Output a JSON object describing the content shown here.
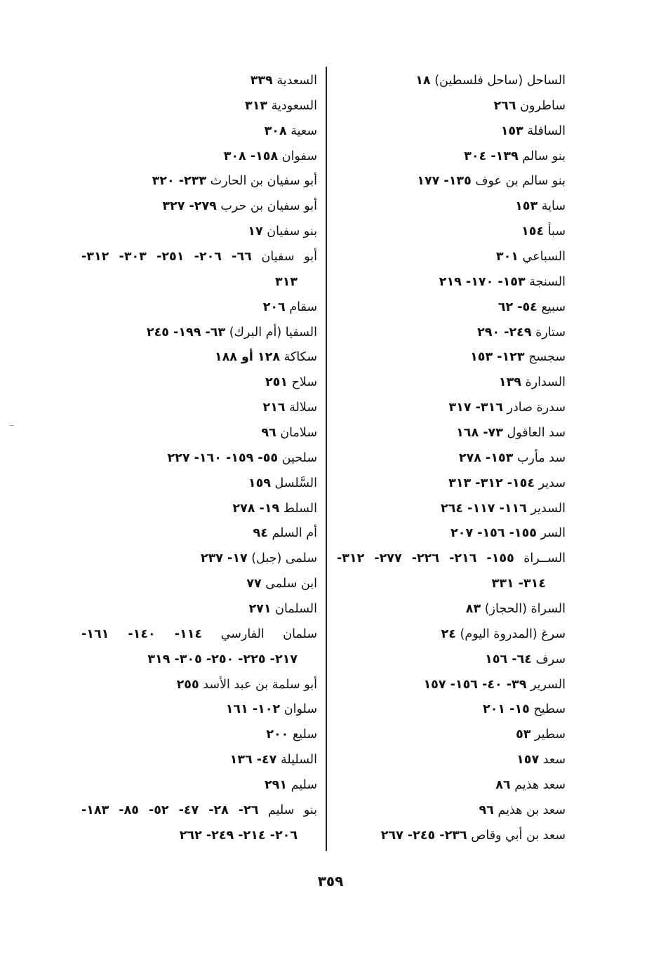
{
  "columns": {
    "right": [
      {
        "name": "الساحل (ساحل فلسطين)",
        "pages": "١٨"
      },
      {
        "name": "ساطرون",
        "pages": "٢٦٦"
      },
      {
        "name": "السافلة",
        "pages": "١٥٣"
      },
      {
        "name": "بنو سالم",
        "pages": "١٣٩- ٣٠٤"
      },
      {
        "name": "بنو سالم بن عوف",
        "pages": "١٣٥- ١٧٧"
      },
      {
        "name": "ساية",
        "pages": "١٥٣"
      },
      {
        "name": "سبأ",
        "pages": "١٥٤"
      },
      {
        "name": "السباعي",
        "pages": "٣٠١"
      },
      {
        "name": "السنجة",
        "pages": "١٥٣- ١٧٠- ٢١٩"
      },
      {
        "name": "سبيع",
        "pages": "٥٤- ٦٢"
      },
      {
        "name": "ستارة",
        "pages": "٢٤٩- ٢٩٠"
      },
      {
        "name": "سجسج",
        "pages": "١٢٣- ١٥٣"
      },
      {
        "name": "السدارة",
        "pages": "١٣٩"
      },
      {
        "name": "سدرة صادر",
        "pages": "٣١٦- ٣١٧"
      },
      {
        "name": "سد العاقول",
        "pages": "٧٣- ١٦٨"
      },
      {
        "name": "سد مأرب",
        "pages": "١٥٣- ٢٧٨"
      },
      {
        "name": "سدير",
        "pages": "١٥٤- ٣١٢- ٣١٣"
      },
      {
        "name": "السدير",
        "pages": "١١٦- ١١٧- ٢٦٤"
      },
      {
        "name": "السر",
        "pages": "١٥٥- ١٥٦- ٢٠٧"
      },
      {
        "name": "الســراة",
        "pages": "١٥٥- ٢١٦- ٢٢٦- ٢٧٧- ٣١٢-",
        "wrap": true
      },
      {
        "name": "",
        "pages": "٣١٤- ٣٣١",
        "cont": true
      },
      {
        "name": "السراة (الحجاز)",
        "pages": "٨٣"
      },
      {
        "name": "سرغ (المدروة اليوم)",
        "pages": "٢٤"
      },
      {
        "name": "سرف",
        "pages": "٦٤- ١٥٦"
      },
      {
        "name": "السرير",
        "pages": "٣٩- ٤٠- ١٥٦- ١٥٧"
      },
      {
        "name": "سطيح",
        "pages": "١٥- ٢٠١"
      },
      {
        "name": "سطير",
        "pages": "٥٣"
      },
      {
        "name": "سعد",
        "pages": "١٥٧"
      },
      {
        "name": "سعد هذيم",
        "pages": "٨٦"
      },
      {
        "name": "سعد بن هذيم",
        "pages": "٩٦"
      },
      {
        "name": "سعد بن أبي وقاص",
        "pages": "٢٣٦- ٢٤٥- ٢٦٧"
      }
    ],
    "left": [
      {
        "name": "السعدية",
        "pages": "٣٣٩"
      },
      {
        "name": "السعودية",
        "pages": "٣١٣"
      },
      {
        "name": "سعية",
        "pages": "٣٠٨"
      },
      {
        "name": "سفوان",
        "pages": "١٥٨- ٣٠٨"
      },
      {
        "name": "أبو سفيان بن الحارث",
        "pages": "٢٣٣- ٣٢٠"
      },
      {
        "name": "أبو سفيان بن حرب",
        "pages": "٢٧٩- ٣٢٧"
      },
      {
        "name": "بنو سفيان",
        "pages": "١٧"
      },
      {
        "name": "أبو سفيان",
        "pages": "٦٦- ٢٠٦- ٢٥١- ٣٠٣- ٣١٢-",
        "wrap": true
      },
      {
        "name": "",
        "pages": "٣١٣",
        "cont": true
      },
      {
        "name": "سقام",
        "pages": "٢٠٦"
      },
      {
        "name": "السقيا (أم البرك)",
        "pages": "٦٣- ١٩٩- ٢٤٥"
      },
      {
        "name": "سكاكة",
        "pages": "١٢٨ أو ١٨٨"
      },
      {
        "name": "سلاح",
        "pages": "٢٥١"
      },
      {
        "name": "سلالة",
        "pages": "٢١٦"
      },
      {
        "name": "سلامان",
        "pages": "٩٦"
      },
      {
        "name": "سلحين",
        "pages": "٥٥- ١٥٩- ١٦٠- ٢٢٧"
      },
      {
        "name": "السَّلسل",
        "pages": "١٥٩"
      },
      {
        "name": "السلط",
        "pages": "١٩- ٢٧٨"
      },
      {
        "name": "أم السلم",
        "pages": "٩٤"
      },
      {
        "name": "سلمى (جبل)",
        "pages": "١٧- ٢٣٧"
      },
      {
        "name": "ابن سلمى",
        "pages": "٧٧"
      },
      {
        "name": "السلمان",
        "pages": "٢٧١"
      },
      {
        "name": "سلمان الفارسي",
        "pages": "١١٤- ١٤٠- ١٦١-",
        "wrap": true
      },
      {
        "name": "",
        "pages": "٢١٧- ٢٢٥- ٢٥٠- ٣٠٥- ٣١٩",
        "cont": true
      },
      {
        "name": "أبو سلمة بن عبد الأسد",
        "pages": "٢٥٥"
      },
      {
        "name": "سلوان",
        "pages": "١٠٢- ١٦١"
      },
      {
        "name": "سليع",
        "pages": "٢٠٠"
      },
      {
        "name": "السليلة",
        "pages": "٤٧- ١٣٦"
      },
      {
        "name": "سليم",
        "pages": "٢٩١"
      },
      {
        "name": "بنو سليم",
        "pages": "٢٦- ٢٨- ٤٧- ٥٢- ٨٥- ١٨٣-",
        "wrap": true
      },
      {
        "name": "",
        "pages": "٢٠٦- ٢١٤- ٢٤٩- ٢٦٢",
        "cont": true
      }
    ]
  },
  "page_number": "٣٥٩"
}
